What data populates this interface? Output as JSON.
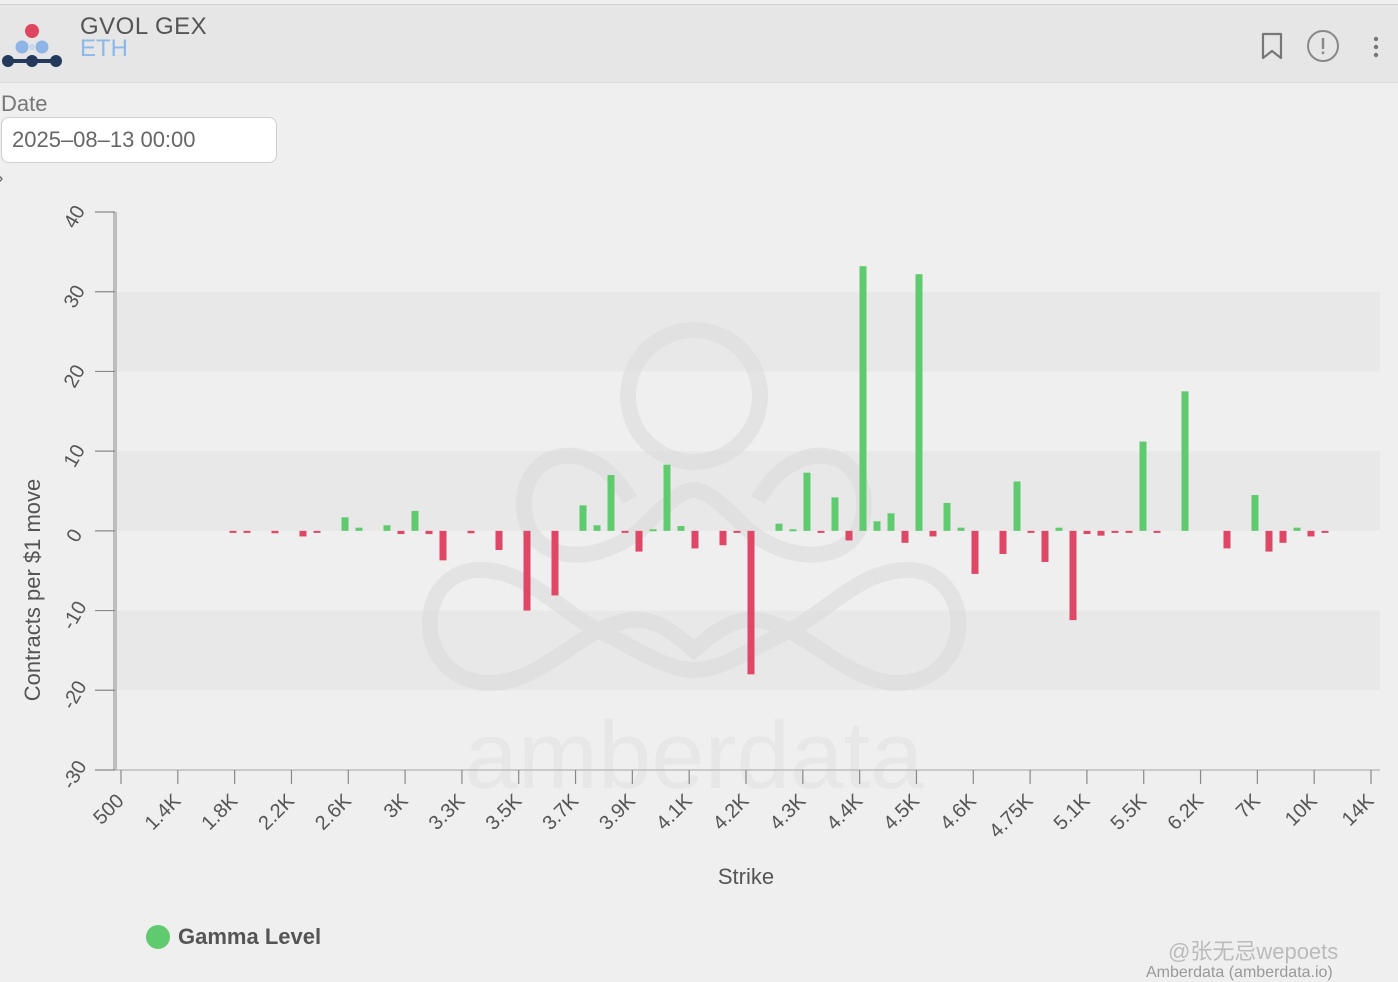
{
  "header": {
    "title": "GVOL GEX",
    "subtitle": "ETH",
    "icons": [
      "bookmark-icon",
      "info-icon",
      "more-vertical-icon"
    ]
  },
  "date_filter": {
    "label": "Date",
    "value": "2025–08–13 00:00"
  },
  "colors": {
    "positive": "#5fcb6e",
    "negative": "#de4766",
    "band": "#e8e8e8"
  },
  "chart_data": {
    "type": "bar",
    "xlabel": "Strike",
    "ylabel": "Contracts per $1 move",
    "ylim": [
      -30,
      40
    ],
    "yticks": [
      "-30",
      "-20",
      "-10",
      "0",
      "10",
      "20",
      "30",
      "40"
    ],
    "xtick_labels": [
      "500",
      "1.4K",
      "1.8K",
      "2.2K",
      "2.6K",
      "3K",
      "3.3K",
      "3.5K",
      "3.7K",
      "3.9K",
      "4.1K",
      "4.2K",
      "4.3K",
      "4.4K",
      "4.5K",
      "4.6K",
      "4.75K",
      "5.1K",
      "5.5K",
      "6.2K",
      "7K",
      "10K",
      "14K"
    ],
    "series": [
      {
        "name": "Gamma Level",
        "values": [
          0,
          0,
          0,
          0,
          0,
          0,
          0,
          0,
          -0.2,
          -0.2,
          0,
          -0.3,
          0,
          -0.7,
          -0.2,
          0,
          1.7,
          0.4,
          0,
          0.7,
          -0.4,
          2.5,
          -0.4,
          -3.7,
          0,
          -0.3,
          0,
          -2.4,
          0,
          -10,
          0,
          -8.1,
          0,
          3.2,
          0.7,
          7,
          -0.2,
          -2.6,
          0.2,
          8.3,
          0.6,
          -2.2,
          0,
          -1.8,
          -0.2,
          -18,
          0,
          0.9,
          0.2,
          7.3,
          -0.2,
          4.2,
          -1.2,
          33.2,
          1.2,
          2.2,
          -1.5,
          32.2,
          -0.7,
          3.5,
          0.4,
          -5.4,
          0,
          -2.9,
          6.2,
          -0.2,
          -3.9,
          0.4,
          -11.2,
          -0.4,
          -0.6,
          -0.2,
          -0.2,
          11.2,
          -0.2,
          0,
          17.5,
          0,
          0,
          -2.2,
          0,
          4.5,
          -2.6,
          -1.5,
          0.4,
          -0.7,
          -0.2,
          0,
          0,
          0,
          0,
          0,
          0,
          0
        ]
      }
    ],
    "legend": {
      "label": "Gamma Level",
      "position": "bottom-left"
    },
    "grid": "horizontal-bands",
    "watermark": "amberdata"
  },
  "footer": {
    "credit": "Amberdata (amberdata.io)",
    "attribution": "@张无忌wepoets"
  }
}
